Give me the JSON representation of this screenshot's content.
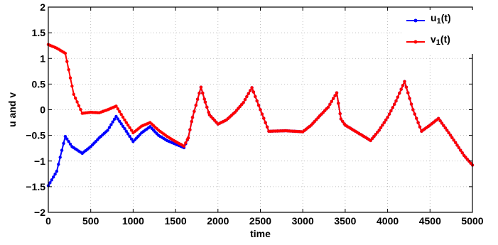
{
  "chart_data": {
    "type": "line",
    "xlabel": "time",
    "ylabel": "u and v",
    "xlim": [
      0,
      5000
    ],
    "ylim": [
      -2,
      2
    ],
    "x_ticks": [
      "0",
      "500",
      "1000",
      "1500",
      "2000",
      "2500",
      "3000",
      "3500",
      "4000",
      "4500",
      "5000"
    ],
    "y_ticks": [
      "2",
      "1.5",
      "1",
      "0.5",
      "0",
      "−0.5",
      "−1",
      "−1.5",
      "−2"
    ],
    "grid": true,
    "legend_position": "top-right",
    "series": [
      {
        "name": "u",
        "name_subscript": "1",
        "name_suffix": "(t)",
        "color": "#0000ff",
        "points": [
          [
            0,
            -1.48
          ],
          [
            100,
            -1.2
          ],
          [
            200,
            -0.52
          ],
          [
            280,
            -0.72
          ],
          [
            400,
            -0.85
          ],
          [
            500,
            -0.72
          ],
          [
            600,
            -0.55
          ],
          [
            700,
            -0.4
          ],
          [
            800,
            -0.13
          ],
          [
            900,
            -0.37
          ],
          [
            1000,
            -0.62
          ],
          [
            1100,
            -0.45
          ],
          [
            1200,
            -0.33
          ],
          [
            1300,
            -0.5
          ],
          [
            1400,
            -0.6
          ],
          [
            1500,
            -0.67
          ],
          [
            1600,
            -0.74
          ],
          [
            1650,
            -0.55
          ],
          [
            1700,
            -0.15
          ],
          [
            1800,
            0.44
          ],
          [
            1850,
            0.15
          ],
          [
            1900,
            -0.1
          ],
          [
            2000,
            -0.28
          ],
          [
            2100,
            -0.2
          ],
          [
            2200,
            -0.05
          ],
          [
            2300,
            0.14
          ],
          [
            2400,
            0.43
          ],
          [
            2500,
            0.0
          ],
          [
            2600,
            -0.42
          ],
          [
            2800,
            -0.41
          ],
          [
            3000,
            -0.43
          ],
          [
            3100,
            -0.3
          ],
          [
            3200,
            -0.12
          ],
          [
            3300,
            0.05
          ],
          [
            3400,
            0.33
          ],
          [
            3450,
            -0.18
          ],
          [
            3500,
            -0.3
          ],
          [
            3600,
            -0.4
          ],
          [
            3700,
            -0.5
          ],
          [
            3800,
            -0.6
          ],
          [
            3900,
            -0.4
          ],
          [
            4000,
            -0.15
          ],
          [
            4100,
            0.17
          ],
          [
            4200,
            0.55
          ],
          [
            4300,
            0.0
          ],
          [
            4400,
            -0.42
          ],
          [
            4500,
            -0.3
          ],
          [
            4600,
            -0.17
          ],
          [
            4700,
            -0.4
          ],
          [
            4800,
            -0.64
          ],
          [
            4900,
            -0.89
          ],
          [
            5000,
            -1.08
          ]
        ]
      },
      {
        "name": "v",
        "name_subscript": "1",
        "name_suffix": "(t)",
        "color": "#ff0000",
        "points": [
          [
            0,
            1.27
          ],
          [
            100,
            1.2
          ],
          [
            200,
            1.1
          ],
          [
            300,
            0.3
          ],
          [
            400,
            -0.07
          ],
          [
            500,
            -0.05
          ],
          [
            600,
            -0.06
          ],
          [
            700,
            0.0
          ],
          [
            800,
            0.07
          ],
          [
            900,
            -0.2
          ],
          [
            1000,
            -0.45
          ],
          [
            1100,
            -0.32
          ],
          [
            1200,
            -0.25
          ],
          [
            1300,
            -0.4
          ],
          [
            1400,
            -0.52
          ],
          [
            1500,
            -0.62
          ],
          [
            1600,
            -0.71
          ],
          [
            1650,
            -0.55
          ],
          [
            1700,
            -0.15
          ],
          [
            1800,
            0.44
          ],
          [
            1850,
            0.15
          ],
          [
            1900,
            -0.1
          ],
          [
            2000,
            -0.28
          ],
          [
            2100,
            -0.2
          ],
          [
            2200,
            -0.05
          ],
          [
            2300,
            0.14
          ],
          [
            2400,
            0.43
          ],
          [
            2500,
            0.0
          ],
          [
            2600,
            -0.42
          ],
          [
            2800,
            -0.41
          ],
          [
            3000,
            -0.43
          ],
          [
            3100,
            -0.3
          ],
          [
            3200,
            -0.12
          ],
          [
            3300,
            0.05
          ],
          [
            3400,
            0.33
          ],
          [
            3450,
            -0.18
          ],
          [
            3500,
            -0.3
          ],
          [
            3600,
            -0.4
          ],
          [
            3700,
            -0.5
          ],
          [
            3800,
            -0.6
          ],
          [
            3900,
            -0.4
          ],
          [
            4000,
            -0.15
          ],
          [
            4100,
            0.17
          ],
          [
            4200,
            0.55
          ],
          [
            4300,
            0.0
          ],
          [
            4400,
            -0.42
          ],
          [
            4500,
            -0.3
          ],
          [
            4600,
            -0.17
          ],
          [
            4700,
            -0.4
          ],
          [
            4800,
            -0.64
          ],
          [
            4900,
            -0.89
          ],
          [
            5000,
            -1.08
          ]
        ]
      }
    ]
  }
}
